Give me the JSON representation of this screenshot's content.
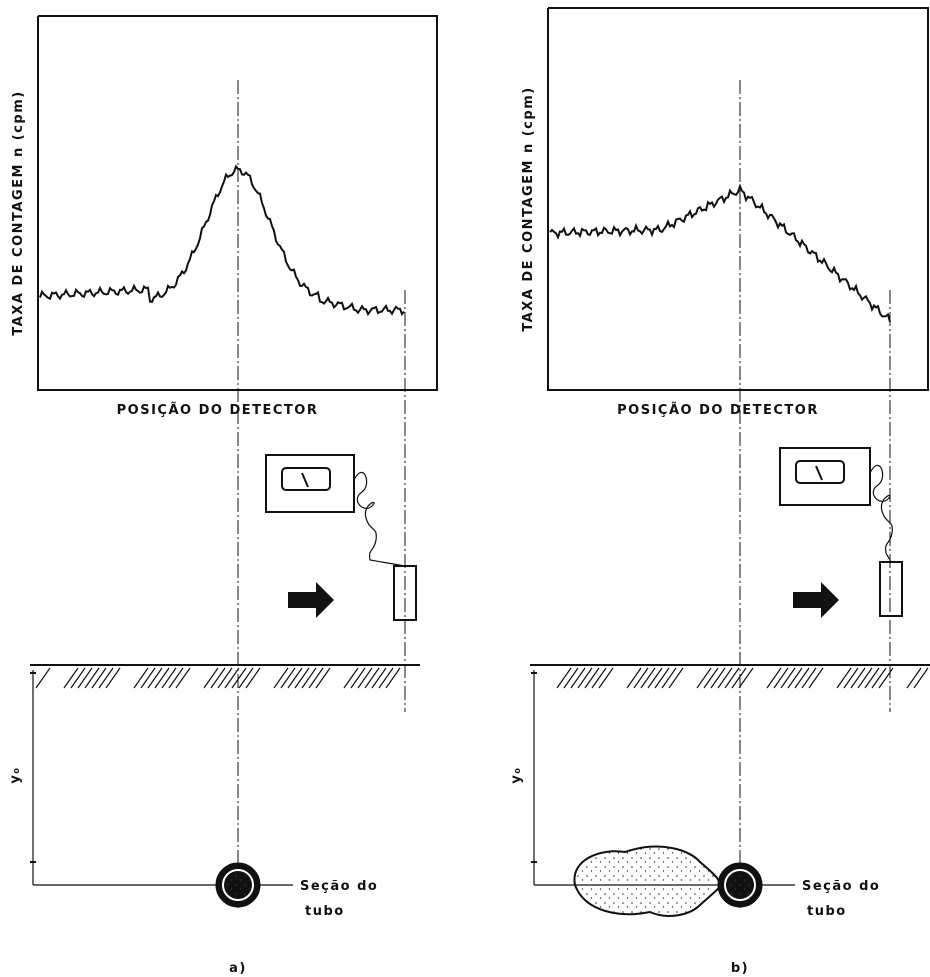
{
  "panels": [
    {
      "y_axis_label": "TAXA DE CONTAGEM  n (cpm)",
      "x_axis_label": "POSIÇÃO  DO  DETECTOR",
      "depth_label": "y₀",
      "pipe_label": [
        "Seção do",
        "tubo"
      ],
      "caption": "a)"
    },
    {
      "y_axis_label": "TAXA DE CONTAGEM  n (cpm)",
      "x_axis_label": "POSIÇÃO  DO  DETECTOR",
      "depth_label": "y₀",
      "pipe_label": [
        "Seção do",
        "tubo"
      ],
      "caption": "b)"
    }
  ]
}
